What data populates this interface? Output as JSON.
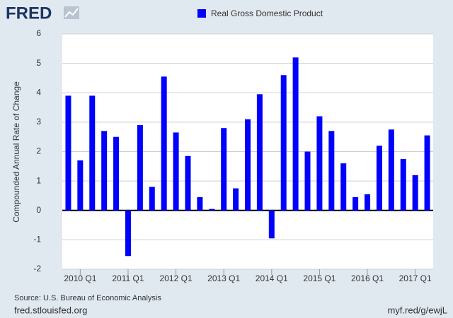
{
  "chart_data": {
    "type": "bar",
    "logo": "FRED",
    "y_label": "Compounded Annual Rate of Change",
    "categories": [
      null,
      "2010 Q1",
      null,
      null,
      null,
      "2011 Q1",
      null,
      null,
      null,
      "2012 Q1",
      null,
      null,
      null,
      "2013 Q1",
      null,
      null,
      null,
      "2014 Q1",
      null,
      null,
      null,
      "2015 Q1",
      null,
      null,
      null,
      "2016 Q1",
      null,
      null,
      null,
      "2017 Q1",
      null
    ],
    "series": [
      {
        "name": "Real Gross Domestic Product",
        "color": "#0000ff",
        "values": [
          3.9,
          1.7,
          3.9,
          2.7,
          2.5,
          -1.55,
          2.9,
          0.8,
          4.55,
          2.65,
          1.85,
          0.45,
          0.05,
          2.8,
          0.75,
          3.1,
          3.95,
          -0.95,
          4.6,
          5.2,
          2.0,
          3.2,
          2.7,
          1.6,
          0.45,
          0.55,
          2.2,
          2.75,
          1.75,
          1.2,
          2.55
        ]
      }
    ],
    "ylim": [
      -2,
      6
    ],
    "yticks": [
      -2,
      -1,
      0,
      1,
      2,
      3,
      4,
      5,
      6
    ],
    "grid": true,
    "source": "Source: U.S. Bureau of Economic Analysis",
    "footer_left": "fred.stlouisfed.org",
    "footer_right": "myf.red/g/ewjL"
  }
}
